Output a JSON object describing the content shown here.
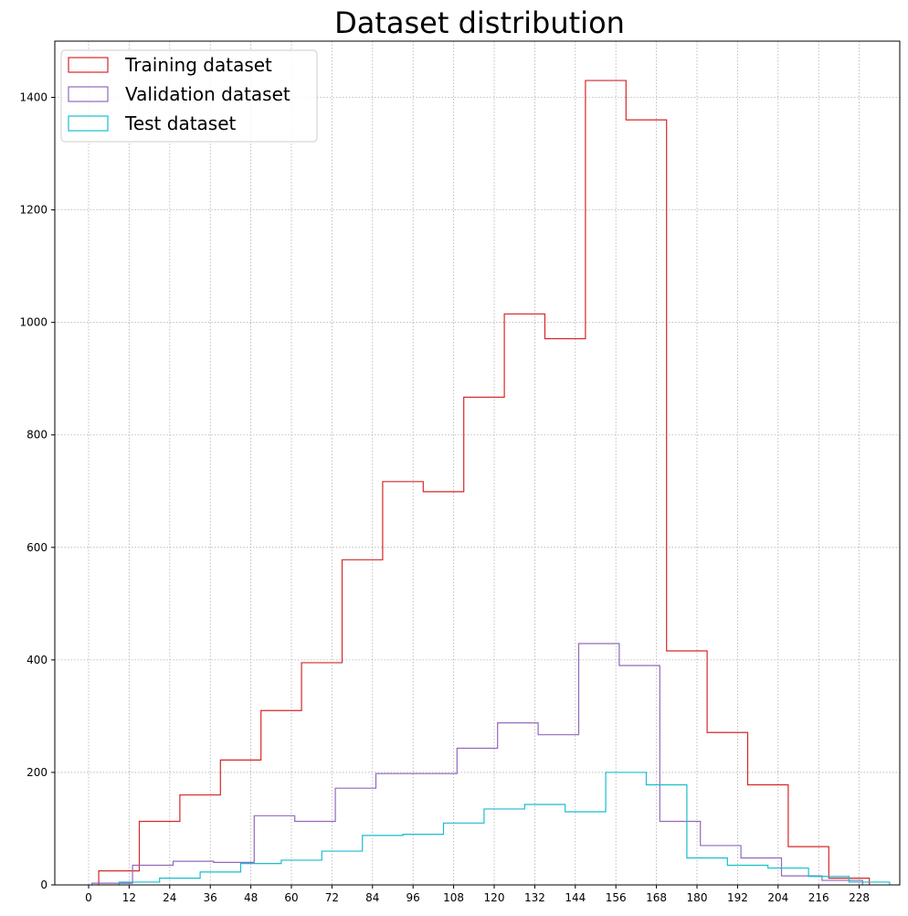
{
  "chart_data": {
    "type": "histogram-step",
    "title": "Dataset distribution",
    "xlabel": "",
    "ylabel": "",
    "xlim": [
      -10,
      240
    ],
    "ylim": [
      0,
      1500
    ],
    "x_ticks": [
      0,
      12,
      24,
      36,
      48,
      60,
      72,
      84,
      96,
      108,
      120,
      132,
      144,
      156,
      168,
      180,
      192,
      204,
      216,
      228
    ],
    "y_ticks": [
      0,
      200,
      400,
      600,
      800,
      1000,
      1200,
      1400
    ],
    "grid": true,
    "legend_position": "top-left",
    "series": [
      {
        "name": "Training dataset",
        "color": "#d62728",
        "edges": [
          3,
          15,
          27,
          39,
          51,
          63,
          75,
          87,
          99,
          111,
          123,
          135,
          147,
          159,
          171,
          183,
          195,
          207,
          219,
          231
        ],
        "values": [
          25,
          113,
          160,
          222,
          310,
          395,
          578,
          717,
          699,
          867,
          1015,
          971,
          1430,
          1360,
          416,
          271,
          178,
          68,
          12
        ]
      },
      {
        "name": "Validation dataset",
        "color": "#9467bd",
        "edges": [
          1,
          13,
          25,
          37,
          49,
          61,
          73,
          85,
          97,
          109,
          121,
          133,
          145,
          157,
          169,
          181,
          193,
          205,
          217,
          229
        ],
        "values": [
          3,
          35,
          42,
          40,
          123,
          113,
          172,
          198,
          198,
          243,
          288,
          267,
          429,
          390,
          113,
          70,
          48,
          16,
          8
        ]
      },
      {
        "name": "Test dataset",
        "color": "#17becf",
        "edges": [
          9,
          21,
          33,
          45,
          57,
          69,
          81,
          93,
          105,
          117,
          129,
          141,
          153,
          165,
          177,
          189,
          201,
          213,
          225,
          237
        ],
        "values": [
          5,
          12,
          23,
          38,
          44,
          60,
          88,
          90,
          110,
          135,
          143,
          130,
          200,
          178,
          48,
          35,
          30,
          15,
          5
        ]
      }
    ]
  }
}
